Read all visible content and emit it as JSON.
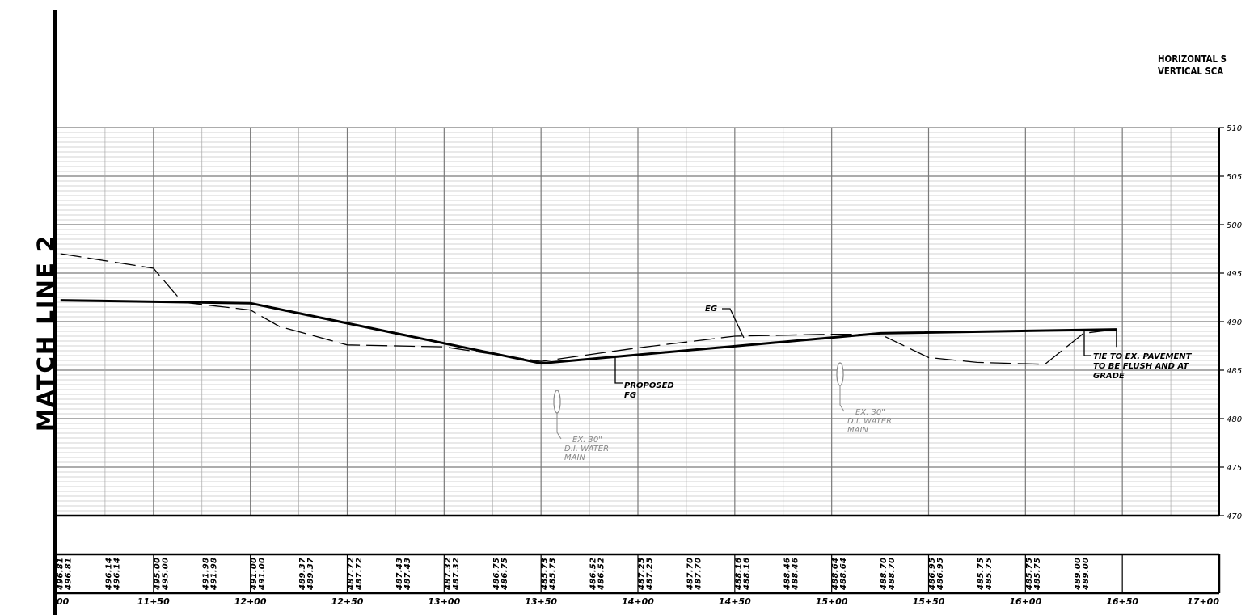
{
  "sheet": {
    "match_line_label": "MATCH LINE 2",
    "scale_horizontal": "HORIZONTAL S",
    "scale_vertical": "VERTICAL SCA"
  },
  "profile": {
    "elevation_labels": [
      "510",
      "505",
      "500",
      "495",
      "490",
      "485",
      "480",
      "475",
      "470"
    ],
    "station_labels": [
      "00",
      "11+50",
      "12+00",
      "12+50",
      "13+00",
      "13+50",
      "14+00",
      "14+50",
      "15+00",
      "15+50",
      "16+00",
      "16+50",
      "17+00"
    ],
    "elevation_columns": [
      {
        "top": "496.81",
        "bottom": "496.81"
      },
      {
        "top": "496.14",
        "bottom": "496.14"
      },
      {
        "top": "495.00",
        "bottom": "495.00"
      },
      {
        "top": "491.98",
        "bottom": "491.98"
      },
      {
        "top": "491.00",
        "bottom": "491.00"
      },
      {
        "top": "489.37",
        "bottom": "489.37"
      },
      {
        "top": "487.72",
        "bottom": "487.72"
      },
      {
        "top": "487.43",
        "bottom": "487.43"
      },
      {
        "top": "487.32",
        "bottom": "487.32"
      },
      {
        "top": "486.75",
        "bottom": "486.75"
      },
      {
        "top": "485.73",
        "bottom": "485.73"
      },
      {
        "top": "486.52",
        "bottom": "486.52"
      },
      {
        "top": "487.25",
        "bottom": "487.25"
      },
      {
        "top": "487.70",
        "bottom": "487.70"
      },
      {
        "top": "488.16",
        "bottom": "488.16"
      },
      {
        "top": "488.46",
        "bottom": "488.46"
      },
      {
        "top": "488.64",
        "bottom": "488.64"
      },
      {
        "top": "488.70",
        "bottom": "488.70"
      },
      {
        "top": "486.95",
        "bottom": "486.95"
      },
      {
        "top": "485.75",
        "bottom": "485.75"
      },
      {
        "top": "485.75",
        "bottom": "485.75"
      },
      {
        "top": "489.00",
        "bottom": "489.00"
      }
    ],
    "existing_grade": [
      [
        11.02,
        497.0
      ],
      [
        11.5,
        495.5
      ],
      [
        11.65,
        492.0
      ],
      [
        12.0,
        491.2
      ],
      [
        12.15,
        489.5
      ],
      [
        12.5,
        487.6
      ],
      [
        13.0,
        487.4
      ],
      [
        13.5,
        485.9
      ],
      [
        14.0,
        487.3
      ],
      [
        14.5,
        488.5
      ],
      [
        15.0,
        488.7
      ],
      [
        15.25,
        488.7
      ],
      [
        15.5,
        486.3
      ],
      [
        15.75,
        485.8
      ],
      [
        16.1,
        485.6
      ],
      [
        16.3,
        488.8
      ],
      [
        16.47,
        489.2
      ]
    ],
    "proposed_grade": [
      [
        11.02,
        492.2
      ],
      [
        12.0,
        491.9
      ],
      [
        13.5,
        485.7
      ],
      [
        15.25,
        488.8
      ],
      [
        16.47,
        489.2
      ]
    ],
    "callouts": {
      "eg": "EG",
      "proposed_fg": [
        "PROPOSED",
        "FG"
      ],
      "water_main": [
        "EX. 30\"",
        "D.I. WATER",
        "MAIN"
      ],
      "tie_in": [
        "TIE TO EX. PAVEMENT",
        "TO BE FLUSH AND AT",
        "GRADE"
      ]
    }
  }
}
